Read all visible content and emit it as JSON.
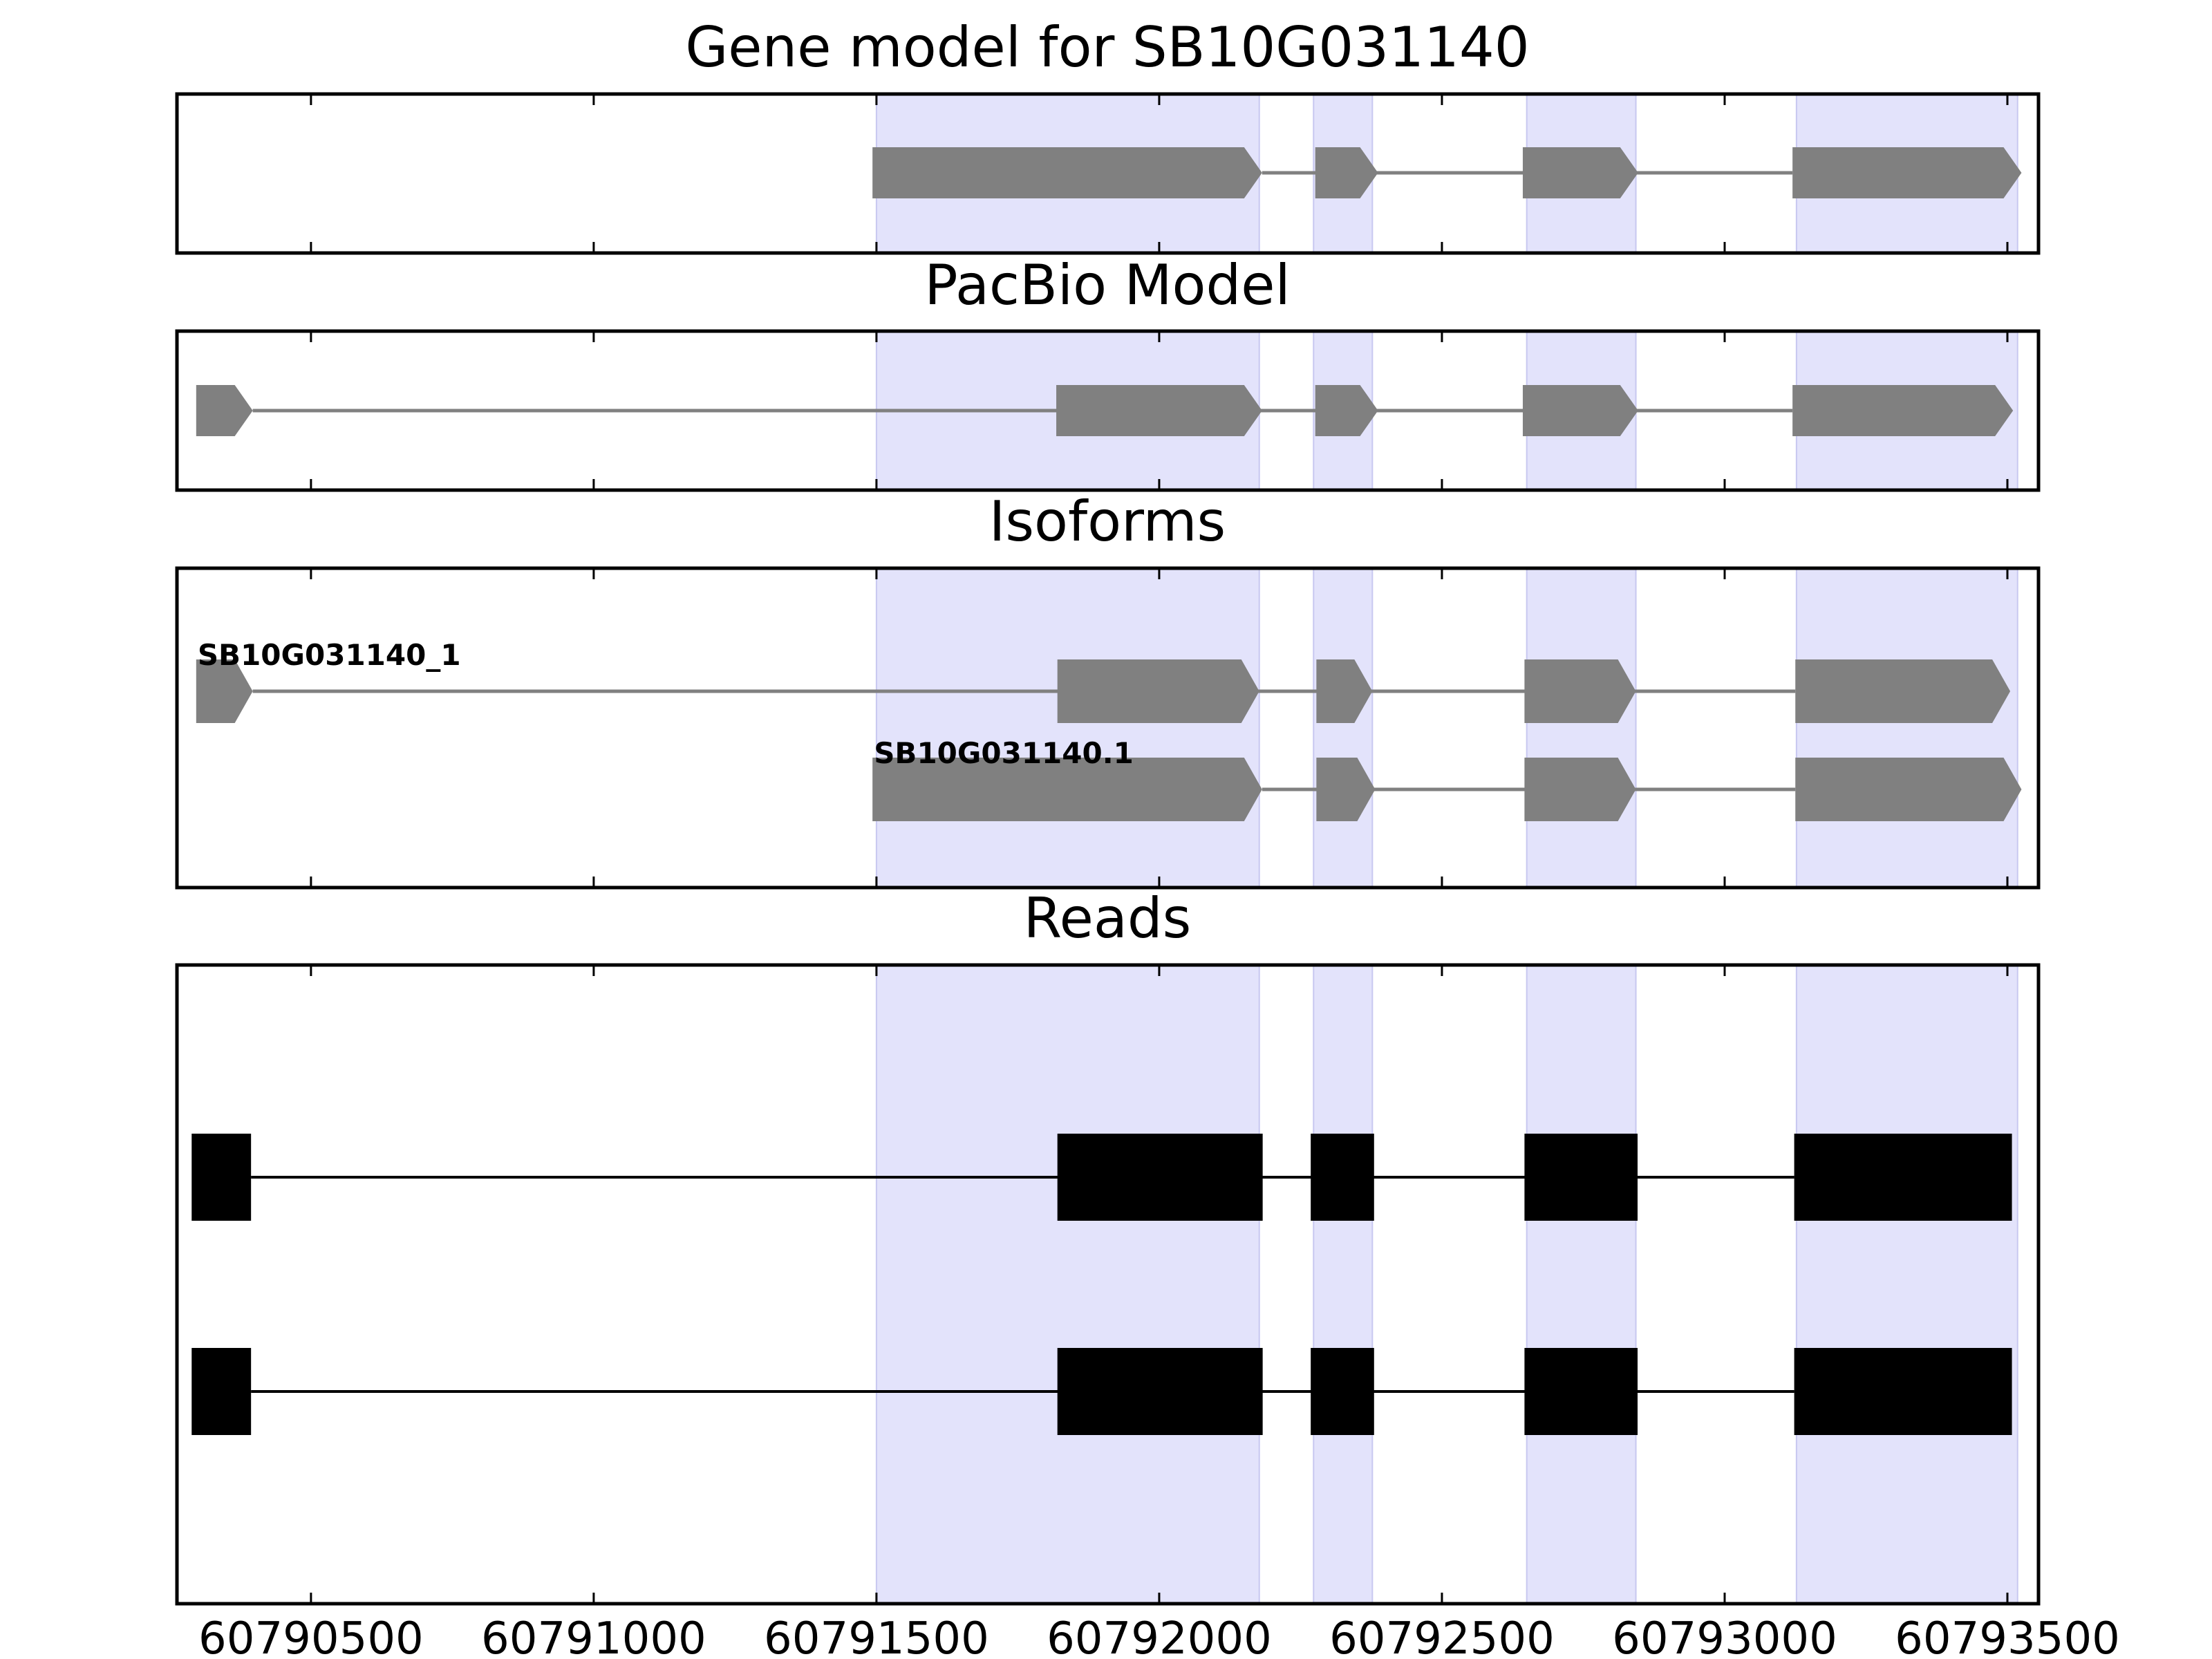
{
  "chart_data": {
    "type": "gene-track",
    "title": "Gene model for SB10G031140",
    "colors": {
      "highlight": "#e3e3fb",
      "highlight_edge": "#c8c8f0",
      "model": "#808080",
      "read": "#000000"
    },
    "x_axis": {
      "range": [
        60790263,
        60793555
      ],
      "ticks": [
        60790500,
        60791000,
        60791500,
        60792000,
        60792500,
        60793000,
        60793500
      ],
      "tick_labels": [
        "60790500",
        "60791000",
        "60791500",
        "60792000",
        "60792500",
        "60793000",
        "60793500"
      ]
    },
    "highlight_regions": [
      [
        60791500,
        60792177
      ],
      [
        60792273,
        60792377
      ],
      [
        60792650,
        60792843
      ],
      [
        60793127,
        60793518
      ]
    ],
    "panels": [
      {
        "title": "Gene model for SB10G031140",
        "tracks": [
          {
            "label": "",
            "exons": [
              [
                60791493,
                60792182
              ],
              [
                60792276,
                60792387
              ],
              [
                60792643,
                60792847
              ],
              [
                60793120,
                60793525
              ]
            ]
          }
        ]
      },
      {
        "title": "PacBio Model",
        "tracks": [
          {
            "label": "",
            "exons": [
              [
                60790297,
                60790397
              ],
              [
                60791818,
                60792182
              ],
              [
                60792276,
                60792387
              ],
              [
                60792643,
                60792847
              ],
              [
                60793120,
                60793510
              ]
            ]
          }
        ]
      },
      {
        "title": "Isoforms",
        "tracks": [
          {
            "label": "SB10G031140_1",
            "exons": [
              [
                60790297,
                60790397
              ],
              [
                60791820,
                60792177
              ],
              [
                60792278,
                60792377
              ],
              [
                60792646,
                60792843
              ],
              [
                60793125,
                60793505
              ]
            ]
          },
          {
            "label": "SB10G031140.1",
            "exons": [
              [
                60791493,
                60792182
              ],
              [
                60792278,
                60792382
              ],
              [
                60792646,
                60792843
              ],
              [
                60793125,
                60793525
              ]
            ]
          }
        ]
      },
      {
        "title": "Reads",
        "tracks": [
          {
            "label": "",
            "exons": [
              [
                60790289,
                60790394
              ],
              [
                60791820,
                60792183
              ],
              [
                60792268,
                60792380
              ],
              [
                60792646,
                60792846
              ],
              [
                60793123,
                60793508
              ]
            ]
          },
          {
            "label": "",
            "exons": [
              [
                60790289,
                60790394
              ],
              [
                60791820,
                60792183
              ],
              [
                60792268,
                60792380
              ],
              [
                60792646,
                60792846
              ],
              [
                60793123,
                60793508
              ]
            ]
          }
        ]
      }
    ]
  }
}
